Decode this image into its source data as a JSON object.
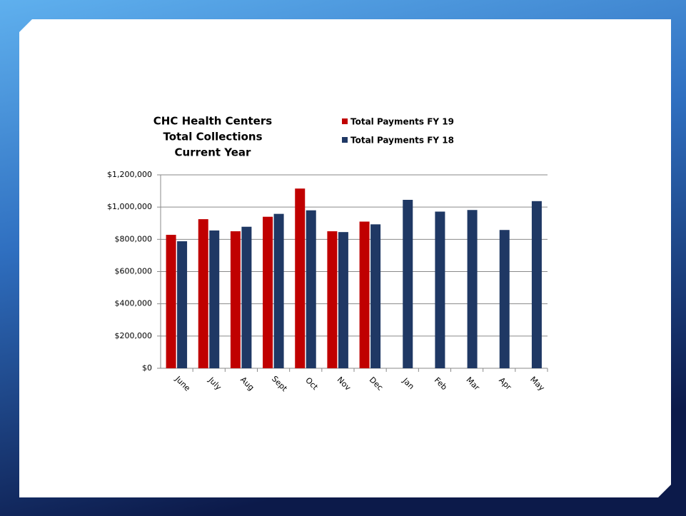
{
  "chart_data": {
    "type": "bar",
    "title_lines": [
      "CHC  Health Centers",
      "Total Collections",
      "Current Year"
    ],
    "categories": [
      "June",
      "July",
      "Aug",
      "Sept",
      "Oct",
      "Nov",
      "Dec",
      "Jan",
      "Feb",
      "Mar",
      "Apr",
      "May"
    ],
    "series": [
      {
        "name": "Total Payments FY 19",
        "color": "#c00000",
        "values": [
          828000,
          925000,
          850000,
          940000,
          1115000,
          850000,
          910000,
          null,
          null,
          null,
          null,
          null
        ]
      },
      {
        "name": "Total Payments FY 18",
        "color": "#1f3864",
        "values": [
          788000,
          855000,
          878000,
          958000,
          980000,
          845000,
          893000,
          1045000,
          972000,
          982000,
          858000,
          1037000
        ]
      }
    ],
    "ylim": [
      0,
      1200000
    ],
    "yticks": [
      {
        "value": 0,
        "label": "$0"
      },
      {
        "value": 200000,
        "label": "$200,000"
      },
      {
        "value": 400000,
        "label": "$400,000"
      },
      {
        "value": 600000,
        "label": "$600,000"
      },
      {
        "value": 800000,
        "label": "$800,000"
      },
      {
        "value": 1000000,
        "label": "$1,000,000"
      },
      {
        "value": 1200000,
        "label": "$1,200,000"
      }
    ],
    "grid": true
  }
}
